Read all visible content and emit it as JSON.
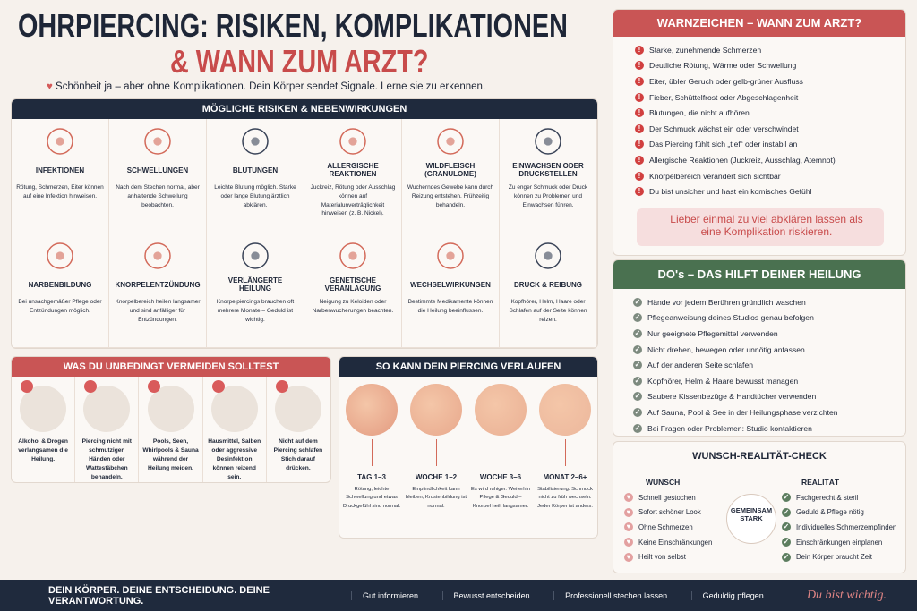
{
  "header": {
    "title_line1": "OHRPIERCING: RISIKEN, KOMPLIKATIONEN",
    "title_line2": "& WANN ZUM ARZT?",
    "subtitle": "Schönheit ja – aber ohne Komplikationen. Dein Körper sendet Signale. Lerne sie zu erkennen."
  },
  "risks": {
    "heading": "MÖGLICHE RISIKEN & NEBENWIRKUNGEN",
    "items": [
      {
        "title": "INFEKTIONEN",
        "text": "Rötung, Schmerzen, Eiter können auf eine Infektion hinweisen."
      },
      {
        "title": "SCHWELLUNGEN",
        "text": "Nach dem Stechen normal, aber anhaltende Schwellung beobachten."
      },
      {
        "title": "BLUTUNGEN",
        "text": "Leichte Blutung möglich. Starke oder lange Blutung ärztlich abklären."
      },
      {
        "title": "ALLERGISCHE REAKTIONEN",
        "text": "Juckreiz, Rötung oder Ausschlag können auf Materialunverträglichkeit hinweisen (z. B. Nickel)."
      },
      {
        "title": "WILDFLEISCH (GRANULOME)",
        "text": "Wucherndes Gewebe kann durch Reizung entstehen. Frühzeitig behandeln."
      },
      {
        "title": "EINWACHSEN ODER DRUCKSTELLEN",
        "text": "Zu enger Schmuck oder Druck können zu Problemen und Einwachsen führen."
      },
      {
        "title": "NARBENBILDUNG",
        "text": "Bei unsachgemäßer Pflege oder Entzündungen möglich."
      },
      {
        "title": "KNORPELENTZÜNDUNG",
        "text": "Knorpelbereich heilen langsamer und sind anfälliger für Entzündungen."
      },
      {
        "title": "VERLÄNGERTE HEILUNG",
        "text": "Knorpelpiercings brauchen oft mehrere Monate – Geduld ist wichtig."
      },
      {
        "title": "GENETISCHE VERANLAGUNG",
        "text": "Neigung zu Keloiden oder Narbenwucherungen beachten."
      },
      {
        "title": "WECHSELWIRKUNGEN",
        "text": "Bestimmte Medikamente können die Heilung beeinflussen."
      },
      {
        "title": "DRUCK & REIBUNG",
        "text": "Kopfhörer, Helm, Haare oder Schlafen auf der Seite können reizen."
      }
    ]
  },
  "avoid": {
    "heading": "WAS DU UNBEDINGT VERMEIDEN SOLLTEST",
    "items": [
      "Alkohol & Drogen verlangsamen die Heilung.",
      "Piercing nicht mit schmutzigen Händen oder Wattestäbchen behandeln.",
      "Pools, Seen, Whirlpools & Sauna während der Heilung meiden.",
      "Hausmittel, Salben oder aggressive Desinfektion können reizend sein.",
      "Nicht auf dem Piercing schlafen Stich darauf drücken."
    ]
  },
  "timeline": {
    "heading": "SO KANN DEIN PIERCING VERLAUFEN",
    "stages": [
      {
        "label": "TAG 1–3",
        "text": "Rötung, leichte Schwellung und etwas Druckgefühl sind normal."
      },
      {
        "label": "WOCHE 1–2",
        "text": "Empfindlichkeit kann bleiben, Krustenbildung ist normal."
      },
      {
        "label": "WOCHE 3–6",
        "text": "Es wird ruhiger. Weiterhin Pflege & Geduld – Knorpel heilt langsamer."
      },
      {
        "label": "MONAT 2–6+",
        "text": "Stabilisierung. Schmuck nicht zu früh wechseln. Jeder Körper ist anders."
      }
    ]
  },
  "warnings": {
    "heading": "WARNZEICHEN – WANN ZUM ARZT?",
    "items": [
      "Starke, zunehmende Schmerzen",
      "Deutliche Rötung, Wärme oder Schwellung",
      "Eiter, übler Geruch oder gelb-grüner Ausfluss",
      "Fieber, Schüttelfrost oder Abgeschlagenheit",
      "Blutungen, die nicht aufhören",
      "Der Schmuck wächst ein oder verschwindet",
      "Das Piercing fühlt sich „tief“ oder instabil an",
      "Allergische Reaktionen (Juckreiz, Ausschlag, Atemnot)",
      "Knorpelbereich verändert sich sichtbar",
      "Du bist unsicher und hast ein komisches Gefühl"
    ],
    "callout": "Lieber einmal zu viel abklären lassen als eine Komplikation riskieren."
  },
  "dos": {
    "heading": "DO's – DAS HILFT DEINER HEILUNG",
    "items": [
      "Hände vor jedem Berühren gründlich waschen",
      "Pflegeanweisung deines Studios genau befolgen",
      "Nur geeignete Pflegemittel verwenden",
      "Nicht drehen, bewegen oder unnötig anfassen",
      "Auf der anderen Seite schlafen",
      "Kopfhörer, Helm & Haare bewusst managen",
      "Saubere Kissenbezüge & Handtücher verwenden",
      "Auf Sauna, Pool & See in der Heilungsphase verzichten",
      "Bei Fragen oder Problemen: Studio kontaktieren"
    ]
  },
  "check": {
    "heading": "WUNSCH-REALITÄT-CHECK",
    "wish_heading": "WUNSCH",
    "wishes": [
      "Schnell gestochen",
      "Sofort schöner Look",
      "Ohne Schmerzen",
      "Keine Einschränkungen",
      "Heilt von selbst"
    ],
    "reality_heading": "REALITÄT",
    "realities": [
      "Fachgerecht & steril",
      "Geduld & Pflege nötig",
      "Individuelles Schmerzempfinden",
      "Einschränkungen einplanen",
      "Dein Körper braucht Zeit"
    ],
    "center": "GEMEINSAM STARK"
  },
  "footer": {
    "slogan": "DEIN KÖRPER. DEINE ENTSCHEIDUNG. DEINE VERANTWORTUNG.",
    "items": [
      "Gut informieren.",
      "Bewusst entscheiden.",
      "Professionell stechen lassen.",
      "Geduldig pflegen."
    ],
    "signature": "Du bist wichtig."
  }
}
